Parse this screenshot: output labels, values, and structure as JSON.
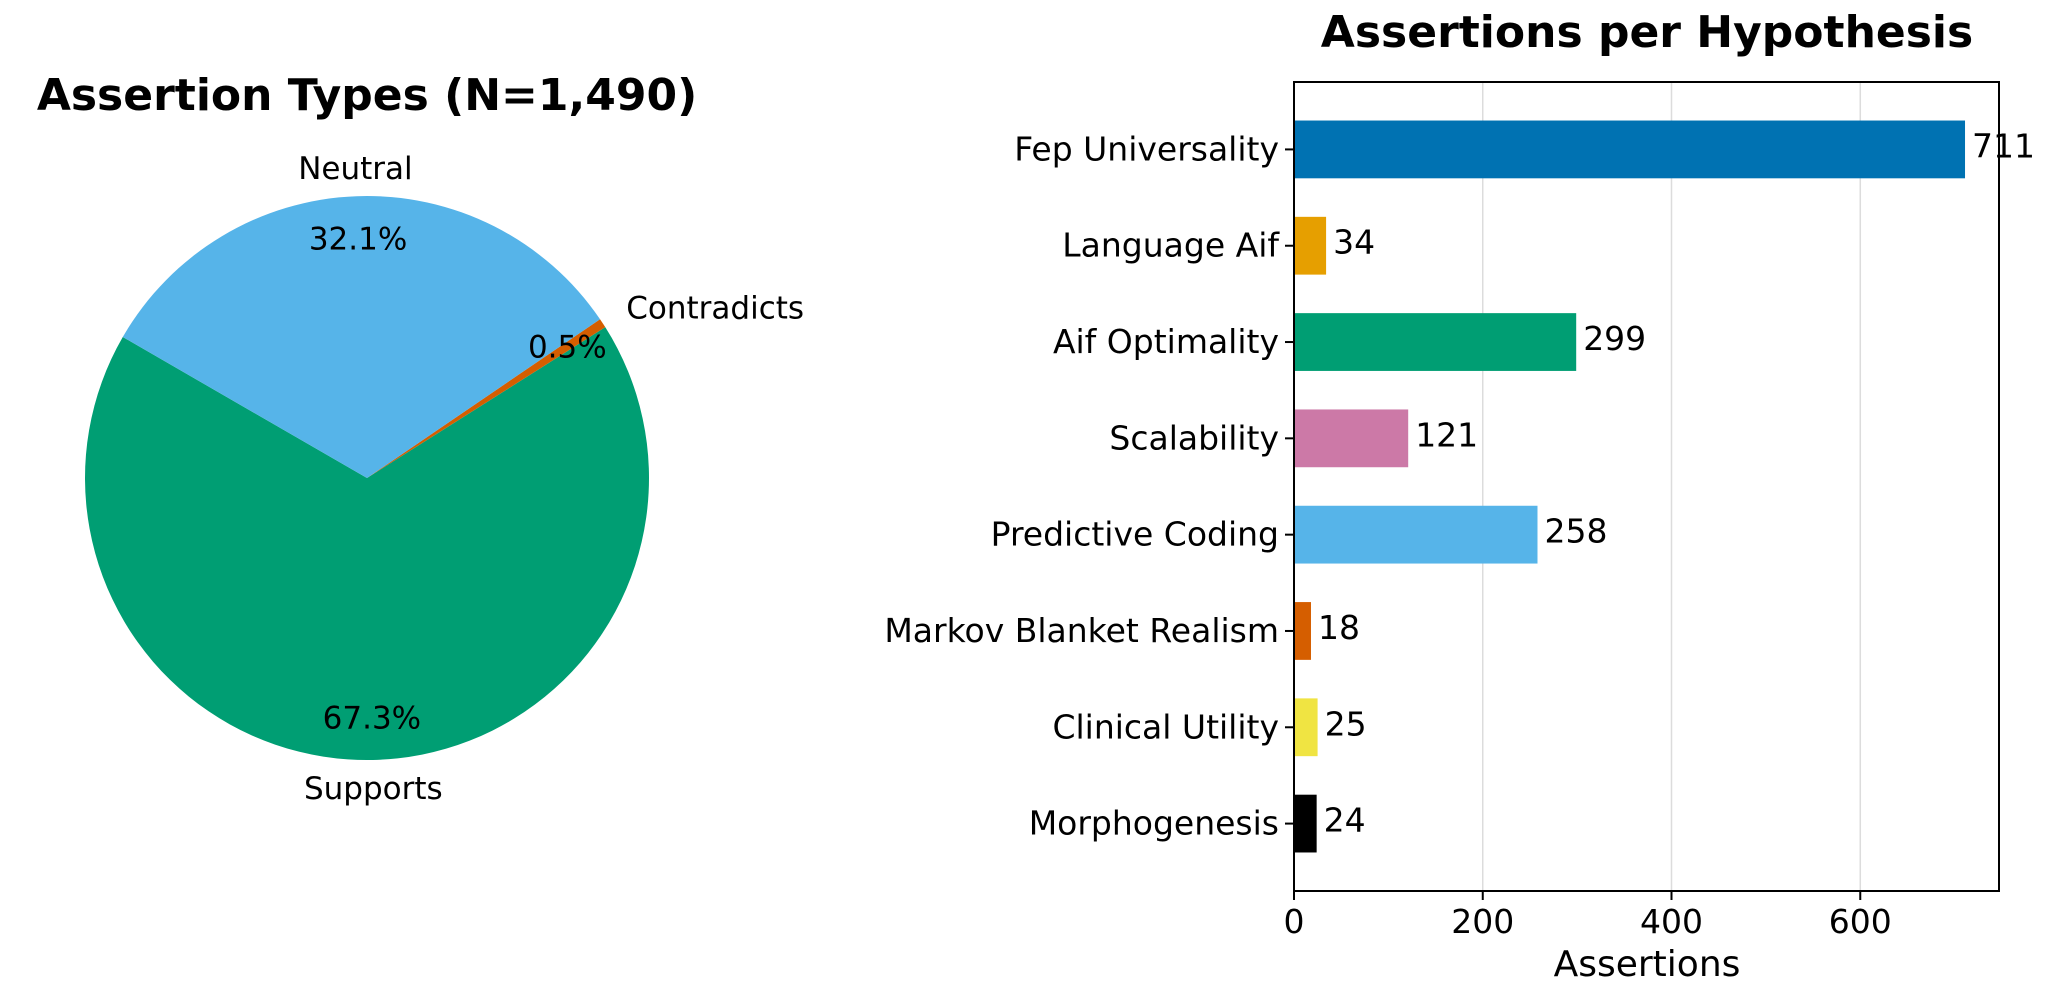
{
  "chart_data": [
    {
      "type": "pie",
      "title": "Assertion Types (N=1,490)",
      "slices": [
        {
          "label": "Supports",
          "value": 1003,
          "percent_label": "67.3%",
          "color": "#009E73"
        },
        {
          "label": "Contradicts",
          "value": 8,
          "percent_label": "0.5%",
          "color": "#D55E00"
        },
        {
          "label": "Neutral",
          "value": 479,
          "percent_label": "32.1%",
          "color": "#56B4E9"
        }
      ],
      "start_angle_deg": 150,
      "direction": "counterclockwise"
    },
    {
      "type": "bar",
      "orientation": "horizontal",
      "title": "Assertions per Hypothesis",
      "xlabel": "Assertions",
      "ylabel": "",
      "xlim": [
        0,
        747
      ],
      "xticks": [
        0,
        200,
        400,
        600
      ],
      "grid": "x",
      "categories": [
        "Fep Universality",
        "Language Aif",
        "Aif Optimality",
        "Scalability",
        "Predictive Coding",
        "Markov Blanket Realism",
        "Clinical Utility",
        "Morphogenesis"
      ],
      "values": [
        711,
        34,
        299,
        121,
        258,
        18,
        25,
        24
      ],
      "colors": [
        "#0072B2",
        "#E69F00",
        "#009E73",
        "#CC79A7",
        "#56B4E9",
        "#D55E00",
        "#F0E442",
        "#000000"
      ]
    }
  ]
}
